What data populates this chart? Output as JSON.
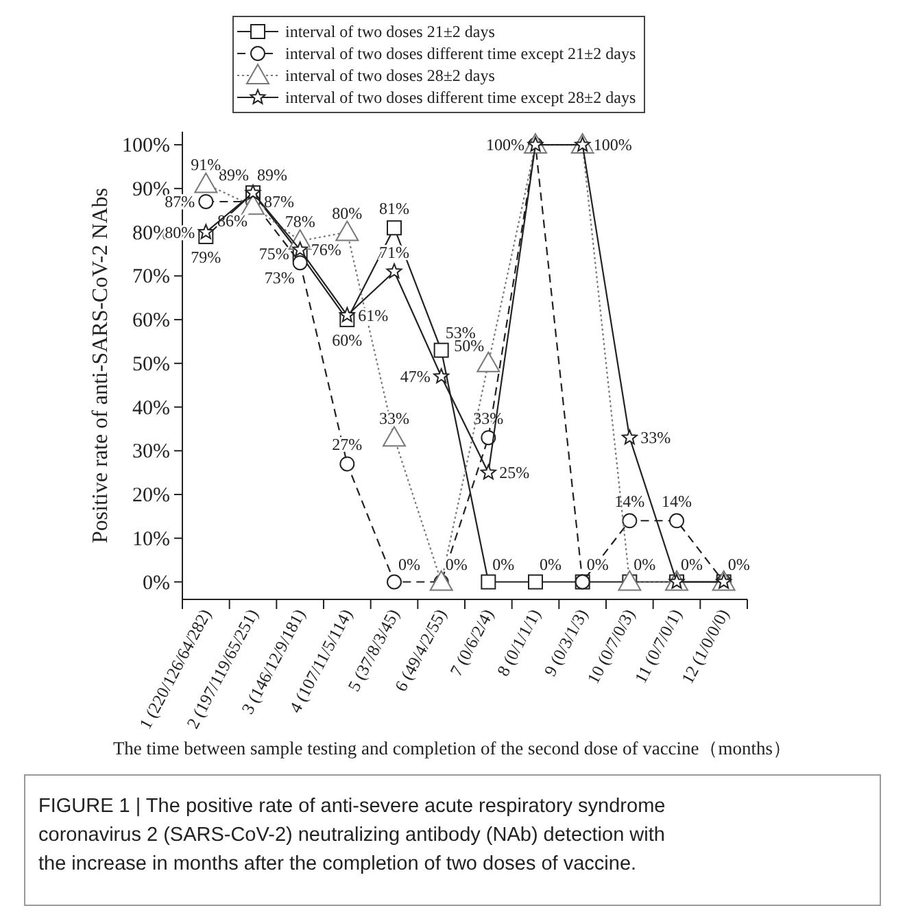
{
  "chart_data": {
    "type": "line",
    "ylabel": "Positive rate of anti-SARS-CoV-2 NAbs",
    "xlabel": "The time between sample testing and completion of the second dose of vaccine（months）",
    "categories": [
      "1 (220/126/64/282)",
      "2 (197/119/65/251)",
      "3 (146/12/9/181)",
      "4 (107/11/5/114)",
      "5 (37/8/3/45)",
      "6 (49/4/2/55)",
      "7 (0/6/2/4)",
      "8 (0/1/1/1)",
      "9 (0/3/1/3)",
      "10 (0/7/0/3)",
      "11 (0/7/0/1)",
      "12 (1/0/0/0)"
    ],
    "ylim": [
      -4,
      103
    ],
    "yticks": [
      {
        "value": 0,
        "label": "0%"
      },
      {
        "value": 10,
        "label": "10%"
      },
      {
        "value": 20,
        "label": "20%"
      },
      {
        "value": 30,
        "label": "30%"
      },
      {
        "value": 40,
        "label": "40%"
      },
      {
        "value": 50,
        "label": "50%"
      },
      {
        "value": 60,
        "label": "60%"
      },
      {
        "value": 70,
        "label": "70%"
      },
      {
        "value": 80,
        "label": "80%"
      },
      {
        "value": 90,
        "label": "90%"
      },
      {
        "value": 100,
        "label": "100%"
      }
    ],
    "legend": "top",
    "grid": false,
    "series": [
      {
        "name": "interval of two doses 21±2 days",
        "color": "#222222",
        "marker": "square",
        "line_style": "solid",
        "values": [
          79,
          89,
          75,
          60,
          81,
          53,
          0,
          0,
          0,
          0,
          0,
          0
        ],
        "value_labels": [
          "79%",
          "89%",
          "75%",
          "60%",
          "81%",
          "53%",
          "0%",
          "0%",
          null,
          null,
          null,
          null
        ]
      },
      {
        "name": "interval of two doses different time except  21±2 days",
        "color": "#222222",
        "marker": "circle",
        "line_style": "dashed",
        "values": [
          87,
          87,
          73,
          27,
          0,
          0,
          33,
          100,
          0,
          14,
          14,
          0
        ],
        "value_labels": [
          "87%",
          "87%",
          "73%",
          "27%",
          "0%",
          null,
          "33%",
          null,
          "0%",
          "14%",
          "14%",
          "0%"
        ]
      },
      {
        "name": "interval of two doses 28±2 days",
        "color": "#777777",
        "marker": "triangle",
        "line_style": "dotted",
        "values": [
          91,
          86,
          78,
          80,
          33,
          0,
          50,
          100,
          100,
          0,
          0,
          0
        ],
        "value_labels": [
          "91%",
          "86%",
          "78%",
          "80%",
          "33%",
          "0%",
          "50%",
          null,
          null,
          "0%",
          null,
          null
        ]
      },
      {
        "name": "interval of two doses different time except 28±2 days",
        "color": "#222222",
        "marker": "star",
        "line_style": "solid",
        "values": [
          80,
          89,
          76,
          61,
          71,
          47,
          25,
          100,
          100,
          33,
          0,
          0
        ],
        "value_labels": [
          "80%",
          "89%",
          "76%",
          "61%",
          "71%",
          "47%",
          "25%",
          "100%",
          "100%",
          "33%",
          "0%",
          null
        ]
      }
    ],
    "annotations": [
      "FIGURE 1 | The positive rate of anti-severe acute respiratory syndrome coronavirus 2 (SARS-CoV-2) neutralizing antibody (NAb) detection with the increase in months after the completion of two doses of vaccine."
    ]
  }
}
